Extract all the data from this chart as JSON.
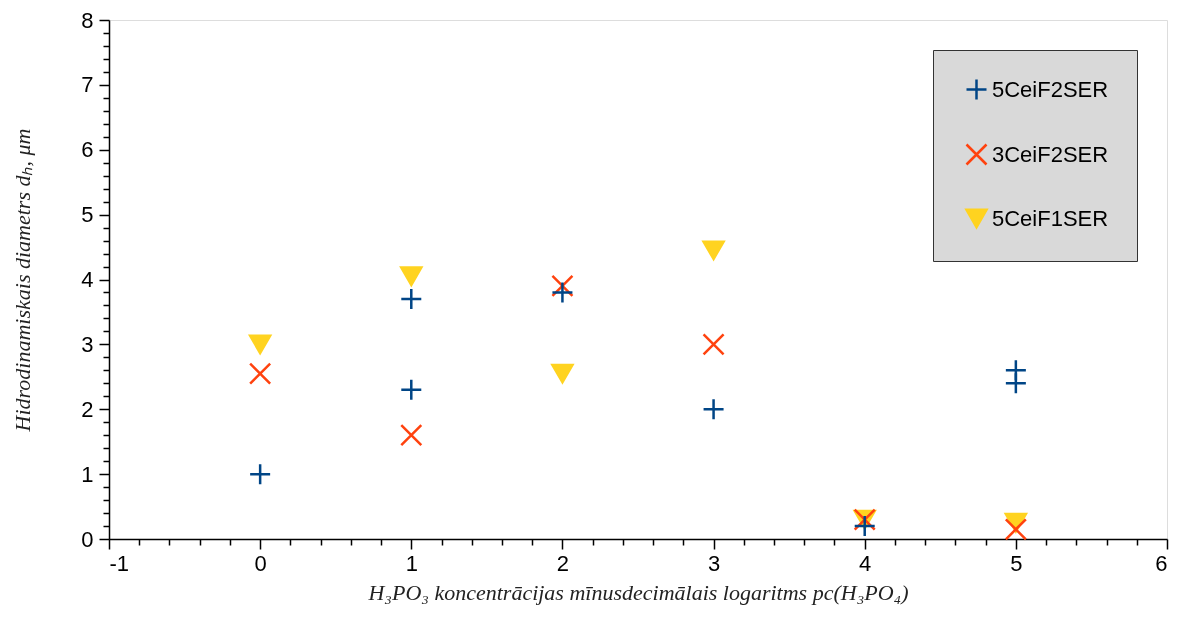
{
  "chart_data": {
    "type": "scatter",
    "xlabel": "H₃PO₃ koncentrācijas mīnusdecimālais logaritms pc(H₃PO₄)",
    "ylabel": "Hidrodinamiskais diametrs dₕ, μm",
    "xlim": [
      -1,
      6
    ],
    "ylim": [
      0,
      8
    ],
    "xticks": [
      -1,
      {
        "value": -0.8,
        "label": null
      },
      {
        "value": -0.6,
        "label": null
      },
      {
        "value": -0.4,
        "label": null
      },
      {
        "value": -0.2,
        "label": null
      },
      0,
      {
        "value": 0.2,
        "label": null
      },
      {
        "value": 0.4,
        "label": null
      },
      {
        "value": 0.6,
        "label": null
      },
      {
        "value": 0.8,
        "label": null
      },
      1,
      {
        "value": 1.2,
        "label": null
      },
      {
        "value": 1.4,
        "label": null
      },
      {
        "value": 1.6,
        "label": null
      },
      {
        "value": 1.8,
        "label": null
      },
      2,
      {
        "value": 2.2,
        "label": null
      },
      {
        "value": 2.4,
        "label": null
      },
      {
        "value": 2.6,
        "label": null
      },
      {
        "value": 2.8,
        "label": null
      },
      3,
      {
        "value": 3.2,
        "label": null
      },
      {
        "value": 3.4,
        "label": null
      },
      {
        "value": 3.6,
        "label": null
      },
      {
        "value": 3.8,
        "label": null
      },
      4,
      {
        "value": 4.2,
        "label": null
      },
      {
        "value": 4.4,
        "label": null
      },
      {
        "value": 4.6,
        "label": null
      },
      {
        "value": 4.8,
        "label": null
      },
      5,
      {
        "value": 5.2,
        "label": null
      },
      {
        "value": 5.4,
        "label": null
      },
      {
        "value": 5.6,
        "label": null
      },
      {
        "value": 5.8,
        "label": null
      },
      6
    ],
    "yticks": [
      0,
      {
        "value": 0.2,
        "label": null
      },
      {
        "value": 0.4,
        "label": null
      },
      {
        "value": 0.6,
        "label": null
      },
      {
        "value": 0.8,
        "label": null
      },
      1,
      {
        "value": 1.2,
        "label": null
      },
      {
        "value": 1.4,
        "label": null
      },
      {
        "value": 1.6,
        "label": null
      },
      {
        "value": 1.8,
        "label": null
      },
      2,
      {
        "value": 2.2,
        "label": null
      },
      {
        "value": 2.4,
        "label": null
      },
      {
        "value": 2.6,
        "label": null
      },
      {
        "value": 2.8,
        "label": null
      },
      3,
      {
        "value": 3.2,
        "label": null
      },
      {
        "value": 3.4,
        "label": null
      },
      {
        "value": 3.6,
        "label": null
      },
      {
        "value": 3.8,
        "label": null
      },
      4,
      {
        "value": 4.2,
        "label": null
      },
      {
        "value": 4.4,
        "label": null
      },
      {
        "value": 4.6,
        "label": null
      },
      {
        "value": 4.8,
        "label": null
      },
      5,
      {
        "value": 5.2,
        "label": null
      },
      {
        "value": 5.4,
        "label": null
      },
      {
        "value": 5.6,
        "label": null
      },
      {
        "value": 5.8,
        "label": null
      },
      6,
      {
        "value": 6.2,
        "label": null
      },
      {
        "value": 6.4,
        "label": null
      },
      {
        "value": 6.6,
        "label": null
      },
      {
        "value": 6.8,
        "label": null
      },
      7,
      {
        "value": 7.2,
        "label": null
      },
      {
        "value": 7.4,
        "label": null
      },
      {
        "value": 7.6,
        "label": null
      },
      {
        "value": 7.8,
        "label": null
      },
      8
    ],
    "grid": false,
    "legend": "top right",
    "series": [
      {
        "name": "5CeiF2SER",
        "color": "#004586",
        "marker": "plus",
        "x": [
          0,
          1,
          1,
          2,
          3,
          4,
          5,
          5
        ],
        "values": [
          1.0,
          2.3,
          3.7,
          3.8,
          2.0,
          0.2,
          2.6,
          2.4
        ]
      },
      {
        "name": "3CeiF2SER",
        "color": "#ff420e",
        "marker": "cross",
        "x": [
          0,
          1,
          2,
          3,
          4,
          5
        ],
        "values": [
          2.55,
          1.6,
          3.9,
          3.0,
          0.3,
          0.15
        ]
      },
      {
        "name": "5CeiF1SER",
        "color": "#ffd320",
        "marker": "triangle-down",
        "x": [
          0,
          1,
          2,
          3,
          4,
          5
        ],
        "values": [
          3.0,
          4.05,
          2.55,
          4.45,
          0.3,
          0.25
        ]
      }
    ]
  }
}
